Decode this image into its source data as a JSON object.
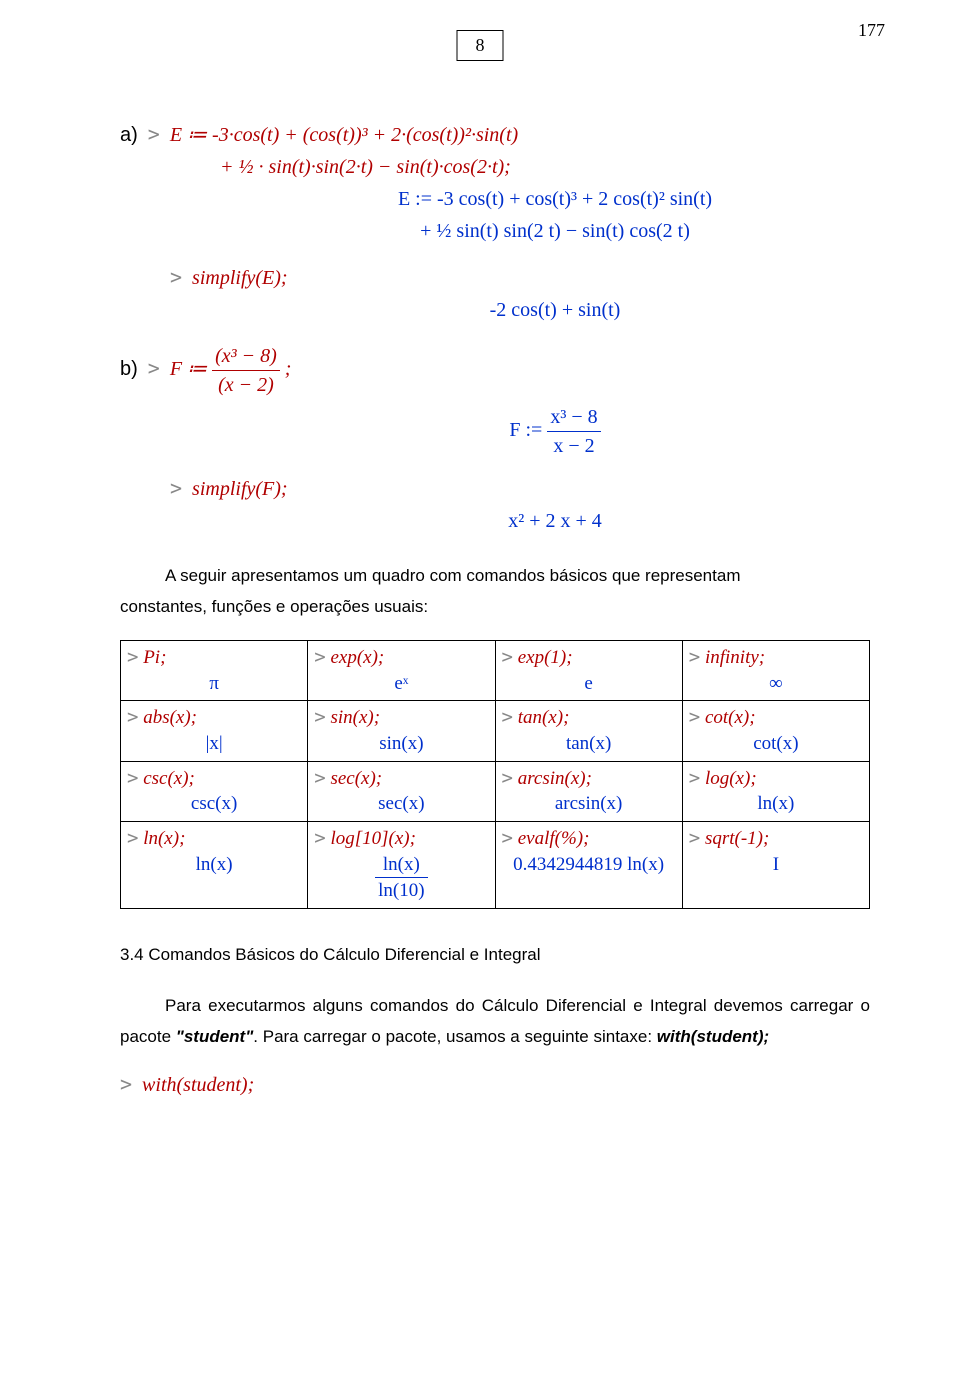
{
  "page": {
    "box_num": "8",
    "right_num": "177"
  },
  "partA": {
    "label": "a)",
    "input_l1": "E ≔ -3·cos(t) + (cos(t))³ + 2·(cos(t))²·sin(t)",
    "input_l2": "+ ½ · sin(t)·sin(2·t) − sin(t)·cos(2·t);",
    "output_l1": "E := -3 cos(t) + cos(t)³ + 2 cos(t)² sin(t)",
    "output_l2": "+ ½ sin(t) sin(2 t) − sin(t) cos(2 t)",
    "simplify_in": "simplify(E);",
    "simplify_out": "-2 cos(t) + sin(t)"
  },
  "partB": {
    "label": "b)",
    "input": "F ≔ (x³ − 8) / (x − 2);",
    "out_lhs": "F :=",
    "out_num": "x³ − 8",
    "out_den": "x − 2",
    "simplify_in": "simplify(F);",
    "simplify_out": "x² + 2 x + 4"
  },
  "para1_a": "A seguir apresentamos um quadro com comandos básicos que representam",
  "para1_b": "constantes, funções e operações usuais:",
  "table": {
    "rows": [
      [
        {
          "in": "Pi;",
          "out": "π"
        },
        {
          "in": "exp(x);",
          "out": "eˣ"
        },
        {
          "in": "exp(1);",
          "out": "e"
        },
        {
          "in": "infinity;",
          "out": "∞"
        }
      ],
      [
        {
          "in": "abs(x);",
          "out": "|x|"
        },
        {
          "in": "sin(x);",
          "out": "sin(x)"
        },
        {
          "in": "tan(x);",
          "out": "tan(x)"
        },
        {
          "in": "cot(x);",
          "out": "cot(x)"
        }
      ],
      [
        {
          "in": "csc(x);",
          "out": "csc(x)"
        },
        {
          "in": "sec(x);",
          "out": "sec(x)"
        },
        {
          "in": "arcsin(x);",
          "out": "arcsin(x)"
        },
        {
          "in": "log(x);",
          "out": "ln(x)"
        }
      ],
      [
        {
          "in": "ln(x);",
          "out": "ln(x)"
        },
        {
          "in": "log[10](x);",
          "out": "ln(x)/ln(10)",
          "frac": true,
          "num": "ln(x)",
          "den": "ln(10)"
        },
        {
          "in": "evalf(%);",
          "out": "0.4342944819 ln(x)"
        },
        {
          "in": "sqrt(-1);",
          "out": "I"
        }
      ]
    ]
  },
  "sec_title": "3.4  Comandos Básicos do Cálculo Diferencial e Integral",
  "para2": "Para executarmos alguns comandos do Cálculo Diferencial e Integral devemos carregar o pacote \"student\". Para carregar o pacote, usamos a seguinte sintaxe: with(student);",
  "with_in": "with(student);"
}
